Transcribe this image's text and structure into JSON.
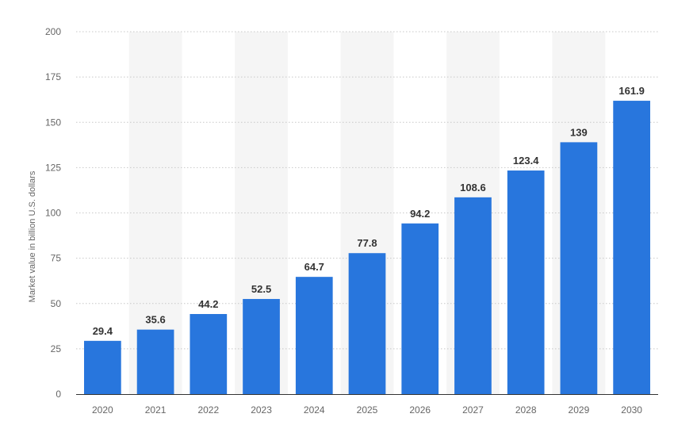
{
  "chart_data": {
    "type": "bar",
    "categories": [
      "2020",
      "2021",
      "2022",
      "2023",
      "2024",
      "2025",
      "2026",
      "2027",
      "2028",
      "2029",
      "2030"
    ],
    "values": [
      29.4,
      35.6,
      44.2,
      52.5,
      64.7,
      77.8,
      94.2,
      108.6,
      123.4,
      139,
      161.9
    ],
    "value_labels": [
      "29.4",
      "35.6",
      "44.2",
      "52.5",
      "64.7",
      "77.8",
      "94.2",
      "108.6",
      "123.4",
      "139",
      "161.9"
    ],
    "title": "",
    "xlabel": "",
    "ylabel": "Market value in billion U.S. dollars",
    "ylim": [
      0,
      200
    ],
    "yticks": [
      0,
      25,
      50,
      75,
      100,
      125,
      150,
      175,
      200
    ],
    "grid": true,
    "alternating_column_shading": true,
    "colors": {
      "bar": "#2876dd",
      "band": "#f5f5f5",
      "grid": "#c8c8c8",
      "text": "#333333",
      "tick_text": "#666666"
    }
  }
}
